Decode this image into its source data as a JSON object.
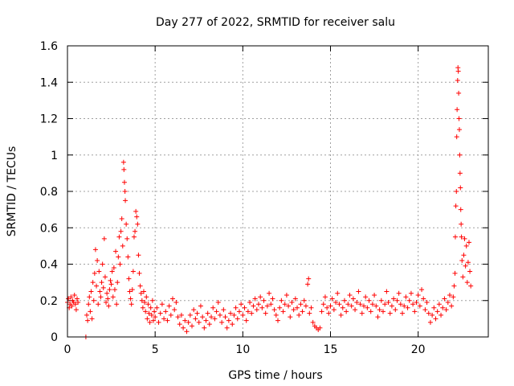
{
  "chart_data": {
    "type": "scatter",
    "title": "Day 277 of 2022, SRMTID for receiver salu",
    "xlabel": "GPS time / hours",
    "ylabel": "SRMTID / TECUs",
    "xlim": [
      0,
      24
    ],
    "ylim": [
      0,
      1.6
    ],
    "xticks": [
      0,
      5,
      10,
      15,
      20
    ],
    "xtick_labels": [
      "0",
      "5",
      "10",
      "15",
      "20"
    ],
    "yticks": [
      0,
      0.2,
      0.4,
      0.6,
      0.8,
      1.0,
      1.2,
      1.4,
      1.6
    ],
    "ytick_labels": [
      "0",
      "0.2",
      "0.4",
      "0.6",
      "0.8",
      "1",
      "1.2",
      "1.4",
      "1.6"
    ],
    "grid": true,
    "marker": "+",
    "color": "#ff0000",
    "series": [
      {
        "name": "SRMTID",
        "points": [
          [
            0.0,
            0.19
          ],
          [
            0.05,
            0.21
          ],
          [
            0.1,
            0.16
          ],
          [
            0.15,
            0.18
          ],
          [
            0.2,
            0.22
          ],
          [
            0.25,
            0.17
          ],
          [
            0.3,
            0.2
          ],
          [
            0.35,
            0.19
          ],
          [
            0.4,
            0.23
          ],
          [
            0.45,
            0.18
          ],
          [
            0.5,
            0.15
          ],
          [
            0.55,
            0.21
          ],
          [
            0.6,
            0.19
          ],
          [
            1.05,
            0.0
          ],
          [
            1.1,
            0.12
          ],
          [
            1.15,
            0.09
          ],
          [
            1.2,
            0.18
          ],
          [
            1.25,
            0.22
          ],
          [
            1.3,
            0.14
          ],
          [
            1.35,
            0.25
          ],
          [
            1.4,
            0.1
          ],
          [
            1.45,
            0.3
          ],
          [
            1.5,
            0.2
          ],
          [
            1.55,
            0.35
          ],
          [
            1.6,
            0.48
          ],
          [
            1.65,
            0.28
          ],
          [
            1.7,
            0.42
          ],
          [
            1.75,
            0.18
          ],
          [
            1.8,
            0.36
          ],
          [
            1.85,
            0.25
          ],
          [
            1.9,
            0.22
          ],
          [
            1.95,
            0.3
          ],
          [
            2.0,
            0.4
          ],
          [
            2.05,
            0.27
          ],
          [
            2.1,
            0.54
          ],
          [
            2.15,
            0.33
          ],
          [
            2.2,
            0.19
          ],
          [
            2.25,
            0.24
          ],
          [
            2.3,
            0.21
          ],
          [
            2.35,
            0.17
          ],
          [
            2.4,
            0.26
          ],
          [
            2.45,
            0.31
          ],
          [
            2.5,
            0.29
          ],
          [
            2.55,
            0.36
          ],
          [
            2.6,
            0.22
          ],
          [
            2.65,
            0.38
          ],
          [
            2.7,
            0.26
          ],
          [
            2.75,
            0.47
          ],
          [
            2.8,
            0.18
          ],
          [
            2.85,
            0.3
          ],
          [
            2.9,
            0.44
          ],
          [
            2.95,
            0.55
          ],
          [
            3.0,
            0.4
          ],
          [
            3.05,
            0.58
          ],
          [
            3.1,
            0.65
          ],
          [
            3.15,
            0.5
          ],
          [
            3.2,
            0.96
          ],
          [
            3.22,
            0.92
          ],
          [
            3.25,
            0.85
          ],
          [
            3.28,
            0.8
          ],
          [
            3.3,
            0.75
          ],
          [
            3.35,
            0.62
          ],
          [
            3.4,
            0.54
          ],
          [
            3.45,
            0.44
          ],
          [
            3.5,
            0.32
          ],
          [
            3.55,
            0.25
          ],
          [
            3.6,
            0.21
          ],
          [
            3.65,
            0.18
          ],
          [
            3.7,
            0.26
          ],
          [
            3.75,
            0.36
          ],
          [
            3.8,
            0.55
          ],
          [
            3.85,
            0.58
          ],
          [
            3.9,
            0.69
          ],
          [
            3.95,
            0.66
          ],
          [
            4.0,
            0.62
          ],
          [
            4.05,
            0.45
          ],
          [
            4.1,
            0.35
          ],
          [
            4.15,
            0.28
          ],
          [
            4.2,
            0.24
          ],
          [
            4.25,
            0.2
          ],
          [
            4.3,
            0.16
          ],
          [
            4.35,
            0.25
          ],
          [
            4.4,
            0.19
          ],
          [
            4.45,
            0.14
          ],
          [
            4.5,
            0.22
          ],
          [
            4.55,
            0.1
          ],
          [
            4.6,
            0.18
          ],
          [
            4.65,
            0.13
          ],
          [
            4.7,
            0.08
          ],
          [
            4.75,
            0.16
          ],
          [
            4.8,
            0.12
          ],
          [
            4.85,
            0.2
          ],
          [
            4.9,
            0.09
          ],
          [
            4.95,
            0.14
          ],
          [
            5.0,
            0.11
          ],
          [
            5.1,
            0.16
          ],
          [
            5.2,
            0.08
          ],
          [
            5.3,
            0.13
          ],
          [
            5.4,
            0.18
          ],
          [
            5.5,
            0.1
          ],
          [
            5.6,
            0.14
          ],
          [
            5.7,
            0.09
          ],
          [
            5.8,
            0.17
          ],
          [
            5.9,
            0.12
          ],
          [
            6.0,
            0.21
          ],
          [
            6.1,
            0.15
          ],
          [
            6.2,
            0.19
          ],
          [
            6.3,
            0.11
          ],
          [
            6.4,
            0.07
          ],
          [
            6.5,
            0.12
          ],
          [
            6.6,
            0.05
          ],
          [
            6.7,
            0.09
          ],
          [
            6.8,
            0.03
          ],
          [
            6.9,
            0.08
          ],
          [
            7.0,
            0.12
          ],
          [
            7.1,
            0.06
          ],
          [
            7.2,
            0.15
          ],
          [
            7.3,
            0.1
          ],
          [
            7.4,
            0.13
          ],
          [
            7.5,
            0.08
          ],
          [
            7.6,
            0.17
          ],
          [
            7.7,
            0.11
          ],
          [
            7.8,
            0.05
          ],
          [
            7.9,
            0.09
          ],
          [
            8.0,
            0.13
          ],
          [
            8.1,
            0.07
          ],
          [
            8.2,
            0.11
          ],
          [
            8.3,
            0.16
          ],
          [
            8.4,
            0.1
          ],
          [
            8.5,
            0.14
          ],
          [
            8.6,
            0.19
          ],
          [
            8.7,
            0.12
          ],
          [
            8.8,
            0.08
          ],
          [
            8.9,
            0.15
          ],
          [
            9.0,
            0.11
          ],
          [
            9.1,
            0.05
          ],
          [
            9.2,
            0.09
          ],
          [
            9.3,
            0.13
          ],
          [
            9.4,
            0.07
          ],
          [
            9.5,
            0.12
          ],
          [
            9.6,
            0.16
          ],
          [
            9.7,
            0.1
          ],
          [
            9.8,
            0.14
          ],
          [
            9.9,
            0.18
          ],
          [
            10.0,
            0.12
          ],
          [
            10.1,
            0.16
          ],
          [
            10.2,
            0.09
          ],
          [
            10.3,
            0.14
          ],
          [
            10.4,
            0.19
          ],
          [
            10.5,
            0.13
          ],
          [
            10.6,
            0.17
          ],
          [
            10.7,
            0.21
          ],
          [
            10.8,
            0.15
          ],
          [
            10.9,
            0.18
          ],
          [
            11.0,
            0.22
          ],
          [
            11.1,
            0.16
          ],
          [
            11.2,
            0.2
          ],
          [
            11.3,
            0.13
          ],
          [
            11.4,
            0.17
          ],
          [
            11.5,
            0.24
          ],
          [
            11.6,
            0.18
          ],
          [
            11.7,
            0.21
          ],
          [
            11.8,
            0.15
          ],
          [
            11.9,
            0.12
          ],
          [
            12.0,
            0.09
          ],
          [
            12.1,
            0.16
          ],
          [
            12.2,
            0.2
          ],
          [
            12.3,
            0.14
          ],
          [
            12.4,
            0.18
          ],
          [
            12.5,
            0.23
          ],
          [
            12.6,
            0.17
          ],
          [
            12.7,
            0.11
          ],
          [
            12.8,
            0.19
          ],
          [
            12.9,
            0.15
          ],
          [
            13.0,
            0.21
          ],
          [
            13.1,
            0.16
          ],
          [
            13.2,
            0.12
          ],
          [
            13.3,
            0.18
          ],
          [
            13.4,
            0.14
          ],
          [
            13.5,
            0.2
          ],
          [
            13.6,
            0.17
          ],
          [
            13.7,
            0.29
          ],
          [
            13.75,
            0.32
          ],
          [
            13.8,
            0.13
          ],
          [
            13.9,
            0.16
          ],
          [
            14.0,
            0.08
          ],
          [
            14.1,
            0.06
          ],
          [
            14.2,
            0.05
          ],
          [
            14.3,
            0.04
          ],
          [
            14.4,
            0.05
          ],
          [
            14.5,
            0.14
          ],
          [
            14.6,
            0.18
          ],
          [
            14.7,
            0.22
          ],
          [
            14.8,
            0.16
          ],
          [
            14.9,
            0.13
          ],
          [
            15.0,
            0.17
          ],
          [
            15.1,
            0.21
          ],
          [
            15.2,
            0.15
          ],
          [
            15.3,
            0.19
          ],
          [
            15.4,
            0.24
          ],
          [
            15.5,
            0.18
          ],
          [
            15.6,
            0.12
          ],
          [
            15.7,
            0.16
          ],
          [
            15.8,
            0.2
          ],
          [
            15.9,
            0.14
          ],
          [
            16.0,
            0.18
          ],
          [
            16.1,
            0.23
          ],
          [
            16.2,
            0.17
          ],
          [
            16.3,
            0.21
          ],
          [
            16.4,
            0.15
          ],
          [
            16.5,
            0.19
          ],
          [
            16.6,
            0.25
          ],
          [
            16.7,
            0.18
          ],
          [
            16.8,
            0.13
          ],
          [
            16.9,
            0.17
          ],
          [
            17.0,
            0.22
          ],
          [
            17.1,
            0.16
          ],
          [
            17.2,
            0.2
          ],
          [
            17.3,
            0.14
          ],
          [
            17.4,
            0.18
          ],
          [
            17.5,
            0.23
          ],
          [
            17.6,
            0.17
          ],
          [
            17.7,
            0.11
          ],
          [
            17.8,
            0.15
          ],
          [
            17.9,
            0.2
          ],
          [
            18.0,
            0.14
          ],
          [
            18.1,
            0.18
          ],
          [
            18.2,
            0.25
          ],
          [
            18.3,
            0.19
          ],
          [
            18.4,
            0.13
          ],
          [
            18.5,
            0.17
          ],
          [
            18.6,
            0.21
          ],
          [
            18.7,
            0.15
          ],
          [
            18.8,
            0.2
          ],
          [
            18.9,
            0.24
          ],
          [
            19.0,
            0.18
          ],
          [
            19.1,
            0.13
          ],
          [
            19.2,
            0.17
          ],
          [
            19.3,
            0.22
          ],
          [
            19.4,
            0.16
          ],
          [
            19.5,
            0.2
          ],
          [
            19.6,
            0.24
          ],
          [
            19.7,
            0.18
          ],
          [
            19.8,
            0.14
          ],
          [
            19.9,
            0.19
          ],
          [
            20.0,
            0.23
          ],
          [
            20.1,
            0.17
          ],
          [
            20.2,
            0.26
          ],
          [
            20.3,
            0.21
          ],
          [
            20.4,
            0.15
          ],
          [
            20.5,
            0.19
          ],
          [
            20.6,
            0.13
          ],
          [
            20.7,
            0.08
          ],
          [
            20.8,
            0.12
          ],
          [
            20.9,
            0.16
          ],
          [
            21.0,
            0.1
          ],
          [
            21.1,
            0.14
          ],
          [
            21.2,
            0.18
          ],
          [
            21.3,
            0.12
          ],
          [
            21.4,
            0.16
          ],
          [
            21.5,
            0.21
          ],
          [
            21.6,
            0.15
          ],
          [
            21.7,
            0.19
          ],
          [
            21.8,
            0.23
          ],
          [
            21.9,
            0.17
          ],
          [
            22.0,
            0.22
          ],
          [
            22.05,
            0.28
          ],
          [
            22.1,
            0.35
          ],
          [
            22.12,
            0.55
          ],
          [
            22.15,
            0.72
          ],
          [
            22.18,
            0.8
          ],
          [
            22.2,
            1.1
          ],
          [
            22.22,
            1.25
          ],
          [
            22.25,
            1.41
          ],
          [
            22.27,
            1.48
          ],
          [
            22.29,
            1.46
          ],
          [
            22.31,
            1.34
          ],
          [
            22.33,
            1.2
          ],
          [
            22.35,
            1.14
          ],
          [
            22.37,
            1.0
          ],
          [
            22.39,
            0.9
          ],
          [
            22.41,
            0.82
          ],
          [
            22.43,
            0.7
          ],
          [
            22.45,
            0.62
          ],
          [
            22.47,
            0.55
          ],
          [
            22.5,
            0.42
          ],
          [
            22.55,
            0.33
          ],
          [
            22.6,
            0.45
          ],
          [
            22.65,
            0.54
          ],
          [
            22.7,
            0.39
          ],
          [
            22.75,
            0.5
          ],
          [
            22.8,
            0.3
          ],
          [
            22.85,
            0.41
          ],
          [
            22.9,
            0.52
          ],
          [
            22.95,
            0.36
          ],
          [
            23.0,
            0.28
          ]
        ]
      }
    ]
  }
}
